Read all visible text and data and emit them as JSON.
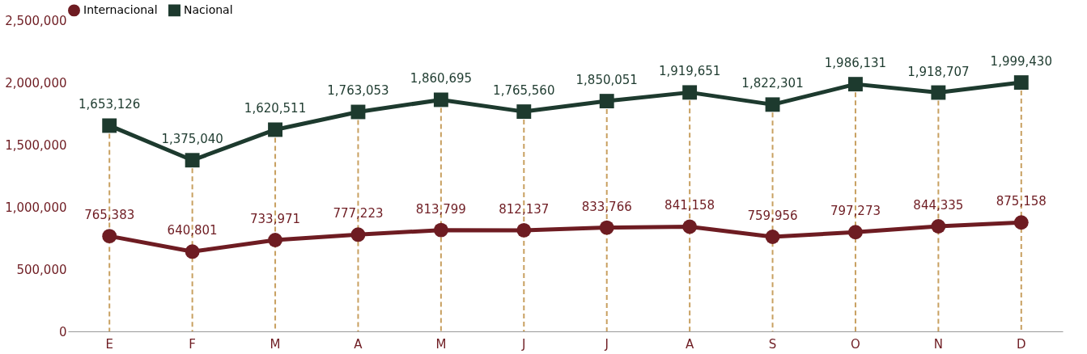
{
  "chart_data": {
    "type": "line",
    "categories": [
      "E",
      "F",
      "M",
      "A",
      "M",
      "J",
      "J",
      "A",
      "S",
      "O",
      "N",
      "D"
    ],
    "series": [
      {
        "name": "Internacional",
        "color": "#6e1c22",
        "marker": "circle",
        "values": [
          765383,
          640801,
          733971,
          777223,
          813799,
          812137,
          833766,
          841158,
          759956,
          797273,
          844335,
          875158
        ],
        "value_labels": [
          "765,383",
          "640,801",
          "733,971",
          "777,223",
          "813,799",
          "812,137",
          "833,766",
          "841,158",
          "759,956",
          "797,273",
          "844,335",
          "875,158"
        ]
      },
      {
        "name": "Nacional",
        "color": "#1d3a2e",
        "marker": "square",
        "values": [
          1653126,
          1375040,
          1620511,
          1763053,
          1860695,
          1765560,
          1850051,
          1919651,
          1822301,
          1986131,
          1918707,
          1999430
        ],
        "value_labels": [
          "1,653,126",
          "1,375,040",
          "1,620,511",
          "1,763,053",
          "1,860,695",
          "1,765,560",
          "1,850,051",
          "1,919,651",
          "1,822,301",
          "1,986,131",
          "1,918,707",
          "1,999,430"
        ]
      }
    ],
    "ylim": [
      0,
      2500000
    ],
    "yticks": [
      0,
      {
        "value": 500000,
        "label": "500,000"
      },
      {
        "value": 1000000,
        "label": "1,000,000"
      },
      {
        "value": 1500000,
        "label": "1,500,000"
      },
      {
        "value": 2000000,
        "label": "2,000,000"
      },
      {
        "value": 2500000,
        "label": "2,500,000"
      }
    ],
    "grid": "x",
    "legend": "top",
    "line_style": "solid"
  }
}
